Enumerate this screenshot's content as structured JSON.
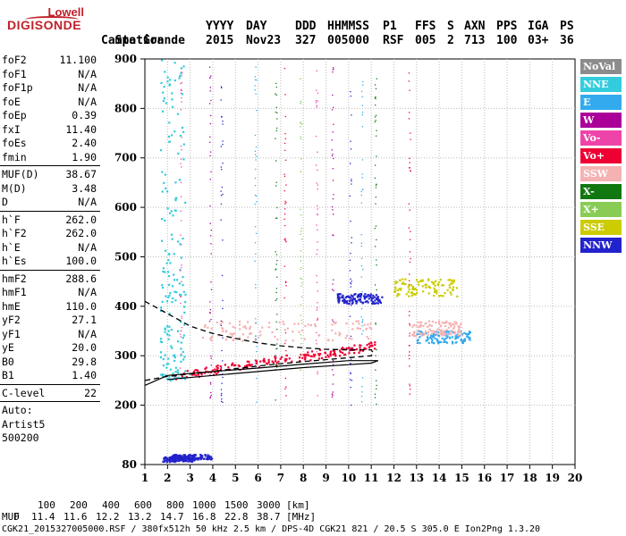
{
  "logo": {
    "line1": "Lowell",
    "line2": "DIGISONDE"
  },
  "header": {
    "col_labels": [
      "Station",
      "YYYY",
      "DAY",
      "DDD",
      "HHMMSS",
      "P1",
      "FFS",
      "S",
      "AXN",
      "PPS",
      "IGA",
      "PS"
    ],
    "row2": {
      "station": "Campo Grande",
      "year": "2015",
      "day": "Nov23",
      "doy": "327",
      "time": "005000",
      "p1": "RSF",
      "ffs": "005",
      "s": "2",
      "axn": "713",
      "pps": "100",
      "iga": "03+",
      "ps": "36"
    }
  },
  "params": [
    {
      "group": [
        {
          "label": "foF2",
          "value": "11.100"
        },
        {
          "label": "foF1",
          "value": "N/A"
        },
        {
          "label": "foF1p",
          "value": "N/A"
        },
        {
          "label": "foE",
          "value": "N/A"
        },
        {
          "label": "foEp",
          "value": "0.39"
        },
        {
          "label": "fxI",
          "value": "11.40"
        },
        {
          "label": "foEs",
          "value": "2.40"
        },
        {
          "label": "fmin",
          "value": "1.90"
        }
      ]
    },
    {
      "group": [
        {
          "label": "MUF(D)",
          "value": "38.67"
        },
        {
          "label": "M(D)",
          "value": "3.48"
        },
        {
          "label": "D",
          "value": "N/A"
        }
      ]
    },
    {
      "group": [
        {
          "label": "h`F",
          "value": "262.0"
        },
        {
          "label": "h`F2",
          "value": "262.0"
        },
        {
          "label": "h`E",
          "value": "N/A"
        },
        {
          "label": "h`Es",
          "value": "100.0"
        }
      ]
    },
    {
      "group": [
        {
          "label": "hmF2",
          "value": "288.6"
        },
        {
          "label": "hmF1",
          "value": "N/A"
        },
        {
          "label": "hmE",
          "value": "110.0"
        },
        {
          "label": "yF2",
          "value": "27.1"
        },
        {
          "label": "yF1",
          "value": "N/A"
        },
        {
          "label": "yE",
          "value": "20.0"
        },
        {
          "label": "B0",
          "value": "29.8"
        },
        {
          "label": "B1",
          "value": "1.40"
        }
      ]
    },
    {
      "group": [
        {
          "label": "C-level",
          "value": "22"
        }
      ]
    }
  ],
  "autoscale": {
    "line1": "Auto:",
    "line2": "Artist5",
    "line3": "500200"
  },
  "legend": [
    {
      "label": "NoVal",
      "color": "#8c8c8c"
    },
    {
      "label": "NNE",
      "color": "#33ccdd"
    },
    {
      "label": "E",
      "color": "#33aaee"
    },
    {
      "label": "W",
      "color": "#aa0099"
    },
    {
      "label": "Vo-",
      "color": "#ee44aa"
    },
    {
      "label": "Vo+",
      "color": "#ee0033"
    },
    {
      "label": "SSW",
      "color": "#f5b2b2"
    },
    {
      "label": "X-",
      "color": "#117711"
    },
    {
      "label": "X+",
      "color": "#88cc55"
    },
    {
      "label": "SSE",
      "color": "#cccc00"
    },
    {
      "label": "NNW",
      "color": "#2222cc"
    }
  ],
  "bottom": {
    "row1_label": "D",
    "row1_values": [
      "100",
      "200",
      "400",
      "600",
      "800",
      "1000",
      "1500",
      "3000"
    ],
    "row1_unit": "[km]",
    "row2_label": "MUF",
    "row2_values": [
      "11.4",
      "11.6",
      "12.2",
      "13.2",
      "14.7",
      "16.8",
      "22.8",
      "38.7"
    ],
    "row2_unit": "[MHz]",
    "footer": "CGK21_2015327005000.RSF / 380fx512h 50 kHz 2.5 km / DPS-4D CGK21 821 / 20.5 S 305.0 E Ion2Png 1.3.20"
  },
  "chart_data": {
    "type": "scatter",
    "title": "",
    "xlabel": "",
    "ylabel": "",
    "xlim": [
      1,
      20
    ],
    "ylim": [
      80,
      900
    ],
    "x_ticks": [
      1,
      2,
      3,
      4,
      5,
      6,
      7,
      8,
      9,
      10,
      11,
      12,
      13,
      14,
      15,
      16,
      17,
      18,
      19,
      20
    ],
    "y_ticks": [
      80,
      200,
      300,
      400,
      500,
      600,
      700,
      800,
      900
    ],
    "grid": true,
    "clusters": [
      {
        "name": "Es trace (NNW)",
        "color": "#2222cc",
        "freq": [
          1.8,
          3.2
        ],
        "height": [
          85,
          95
        ]
      },
      {
        "name": "Es trace (NNW) upper",
        "color": "#2222cc",
        "freq": [
          2.2,
          4.0
        ],
        "height": [
          90,
          100
        ]
      },
      {
        "name": "F trace (Vo+)",
        "color": "#ee0033",
        "freq": [
          2.3,
          11.2
        ],
        "height": [
          258,
          320
        ]
      },
      {
        "name": "F trace (SSW)",
        "color": "#f5b2b2",
        "freq": [
          3.5,
          11.0
        ],
        "height": [
          330,
          370
        ]
      },
      {
        "name": "X trace (SSE)",
        "color": "#cccc00",
        "freq": [
          12.0,
          14.8
        ],
        "height": [
          420,
          455
        ]
      },
      {
        "name": "Oblique (E)",
        "color": "#33aaee",
        "freq": [
          13.0,
          15.4
        ],
        "height": [
          325,
          350
        ]
      },
      {
        "name": "Oblique (NNW)",
        "color": "#2222cc",
        "freq": [
          9.5,
          11.5
        ],
        "height": [
          405,
          425
        ]
      },
      {
        "name": "Oblique (SSW) high",
        "color": "#f5b2b2",
        "freq": [
          12.8,
          15.0
        ],
        "height": [
          340,
          370
        ]
      },
      {
        "name": "Low spread (NNE)",
        "color": "#33ccdd",
        "freq": [
          1.7,
          2.8
        ],
        "height": [
          250,
          900
        ]
      }
    ],
    "profile_lines": {
      "dashed": {
        "x": [
          1,
          2.0,
          3.0,
          4.0,
          5.0,
          6.0,
          7.0,
          8.0,
          9.0,
          10.0,
          11.0,
          11.1,
          11.0,
          10.0,
          9.0,
          8.0,
          7.0,
          6.0,
          5.0,
          4.0,
          3.0,
          2.0,
          1.0
        ],
        "y": [
          410,
          385,
          360,
          345,
          335,
          326,
          320,
          316,
          313,
          312,
          312,
          305,
          300,
          296,
          292,
          288,
          284,
          279,
          274,
          268,
          263,
          258,
          250
        ]
      },
      "solid": {
        "x": [
          1.0,
          2.0,
          4.0,
          6.0,
          8.0,
          10.0,
          11.3,
          11.0,
          10.0,
          8.0,
          6.0,
          4.0,
          2.0
        ],
        "y": [
          240,
          260,
          268,
          275,
          283,
          290,
          290,
          285,
          282,
          276,
          268,
          260,
          252
        ]
      }
    }
  }
}
